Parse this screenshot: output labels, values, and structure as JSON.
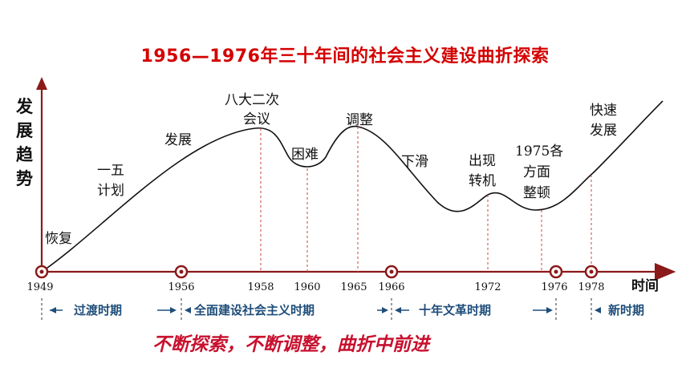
{
  "title": "1956—1976年三十年间的社会主义建设曲折探索",
  "y_axis_label": [
    "发",
    "展",
    "趋",
    "势"
  ],
  "x_axis_label": "时间",
  "curve_labels": {
    "recover": "恢复",
    "five_year": [
      "一五",
      "计划"
    ],
    "develop": "发展",
    "eighth_congress": [
      "八大二次",
      "会议"
    ],
    "difficulty": "困难",
    "adjust": "调整",
    "decline": "下滑",
    "turning_point": [
      "出现",
      "转机"
    ],
    "rectify_1975": [
      "1975各",
      "方面",
      "整顿"
    ],
    "rapid_growth": [
      "快速",
      "发展"
    ]
  },
  "years": [
    "1949",
    "1956",
    "1958",
    "1960",
    "1965",
    "1966",
    "1972",
    "1976",
    "1978"
  ],
  "periods": [
    "过渡时期",
    "全面建设社会主义时期",
    "十年文革时期",
    "新时期"
  ],
  "slogan": "不断探索，不断调整，曲折中前进",
  "colors": {
    "title": "#d40000",
    "axis": "#8b1a1a",
    "curve": "#111111",
    "guide": "#d04040",
    "period_text": "#1f4e7a",
    "slogan": "#c8102e"
  }
}
